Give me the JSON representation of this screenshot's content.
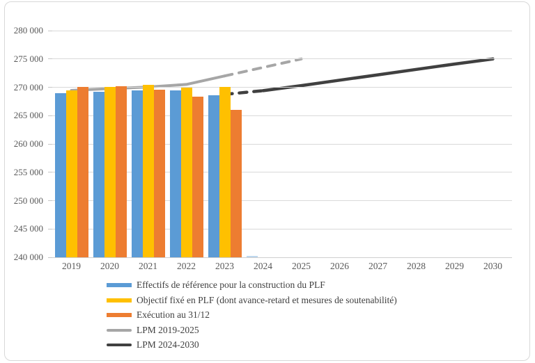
{
  "chart_data": {
    "type": "bar+line",
    "title": "",
    "categories": [
      "2019",
      "2020",
      "2021",
      "2022",
      "2023",
      "2024",
      "2025",
      "2026",
      "2027",
      "2028",
      "2029",
      "2030"
    ],
    "ylim": [
      240000,
      280000
    ],
    "grid": true,
    "legend_position": "bottom-left",
    "yticks": [
      {
        "value": 240000,
        "label": "240 000"
      },
      {
        "value": 245000,
        "label": "245 000"
      },
      {
        "value": 250000,
        "label": "250 000"
      },
      {
        "value": 255000,
        "label": "255 000"
      },
      {
        "value": 260000,
        "label": "260 000"
      },
      {
        "value": 265000,
        "label": "265 000"
      },
      {
        "value": 270000,
        "label": "270 000"
      },
      {
        "value": 275000,
        "label": "275 000"
      },
      {
        "value": 280000,
        "label": "280 000"
      }
    ],
    "series": [
      {
        "id": "effectifs-reference",
        "name": "Effectifs de référence pour la construction du PLF",
        "type": "bar",
        "color": "#5B9BD5",
        "values": [
          269000,
          269200,
          269500,
          269400,
          268600,
          240250,
          null,
          null,
          null,
          null,
          null,
          null
        ],
        "point_colors": {
          "5": "#BDD7EE"
        },
        "clipped_2024_sliver": true
      },
      {
        "id": "objectif-plf",
        "name": "Objectif fixé en PLF (dont avance-retard et mesures de soutenabilité)",
        "type": "bar",
        "color": "#FFC000",
        "values": [
          269400,
          270100,
          270400,
          270000,
          270100,
          null,
          null,
          null,
          null,
          null,
          null,
          null
        ]
      },
      {
        "id": "execution",
        "name": "Exécution au 31/12",
        "type": "bar",
        "color": "#ED7D31",
        "values": [
          270100,
          270200,
          269600,
          268400,
          266000,
          null,
          null,
          null,
          null,
          null,
          null,
          null
        ]
      },
      {
        "id": "lpm-2019-2025",
        "name": "LPM 2019-2025",
        "type": "line",
        "color": "#A6A6A6",
        "stroke_width": 4,
        "values": [
          269450,
          269750,
          270050,
          270500,
          272000,
          273500,
          275000,
          null,
          null,
          null,
          null,
          null
        ],
        "segments": [
          {
            "from": 0,
            "to": 4,
            "dash": false
          },
          {
            "from": 4,
            "to": 6,
            "dash": true
          }
        ]
      },
      {
        "id": "lpm-2024-2030",
        "name": "LPM 2024-2030",
        "type": "line",
        "color": "#404040",
        "stroke_width": 4.5,
        "values": [
          null,
          null,
          null,
          null,
          268750,
          269400,
          270300,
          271250,
          272200,
          273150,
          274100,
          275000
        ],
        "segments": [
          {
            "from": 4,
            "to": 5,
            "dash": true
          },
          {
            "from": 5,
            "to": 11,
            "dash": false
          }
        ]
      }
    ]
  }
}
